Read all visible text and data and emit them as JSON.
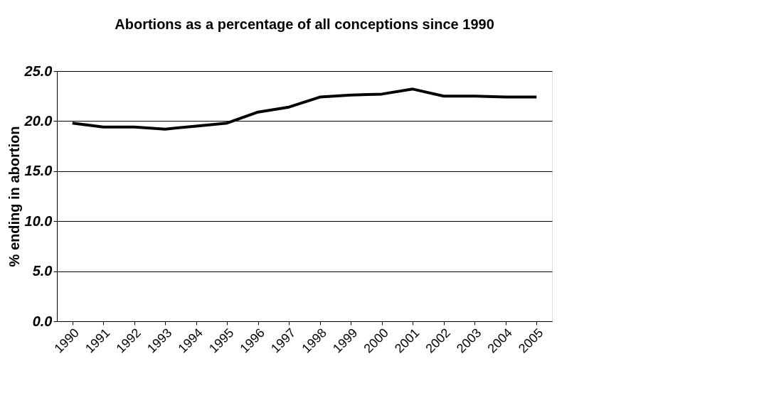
{
  "chart_data": {
    "type": "line",
    "title": "Abortions as a percentage of all conceptions since 1990",
    "ylabel": "% ending in abortion",
    "categories": [
      "1990",
      "1991",
      "1992",
      "1993",
      "1994",
      "1995",
      "1996",
      "1997",
      "1998",
      "1999",
      "2000",
      "2001",
      "2002",
      "2003",
      "2004",
      "2005"
    ],
    "series": [
      {
        "color": "#000000",
        "values": [
          19.8,
          19.4,
          19.4,
          19.2,
          19.5,
          19.8,
          20.9,
          21.4,
          22.4,
          22.6,
          22.7,
          23.2,
          22.5,
          22.5,
          22.4,
          22.4
        ]
      }
    ],
    "ylim": [
      0,
      25
    ],
    "yticks": [
      {
        "value": 0,
        "label": "0.0"
      },
      {
        "value": 5,
        "label": "5.0"
      },
      {
        "value": 10,
        "label": "10.0"
      },
      {
        "value": 15,
        "label": "15.0"
      },
      {
        "value": 20,
        "label": "20.0"
      },
      {
        "value": 25,
        "label": "25.0"
      }
    ],
    "grid": "y",
    "legend": false,
    "marker": "none",
    "line_style": "solid"
  }
}
